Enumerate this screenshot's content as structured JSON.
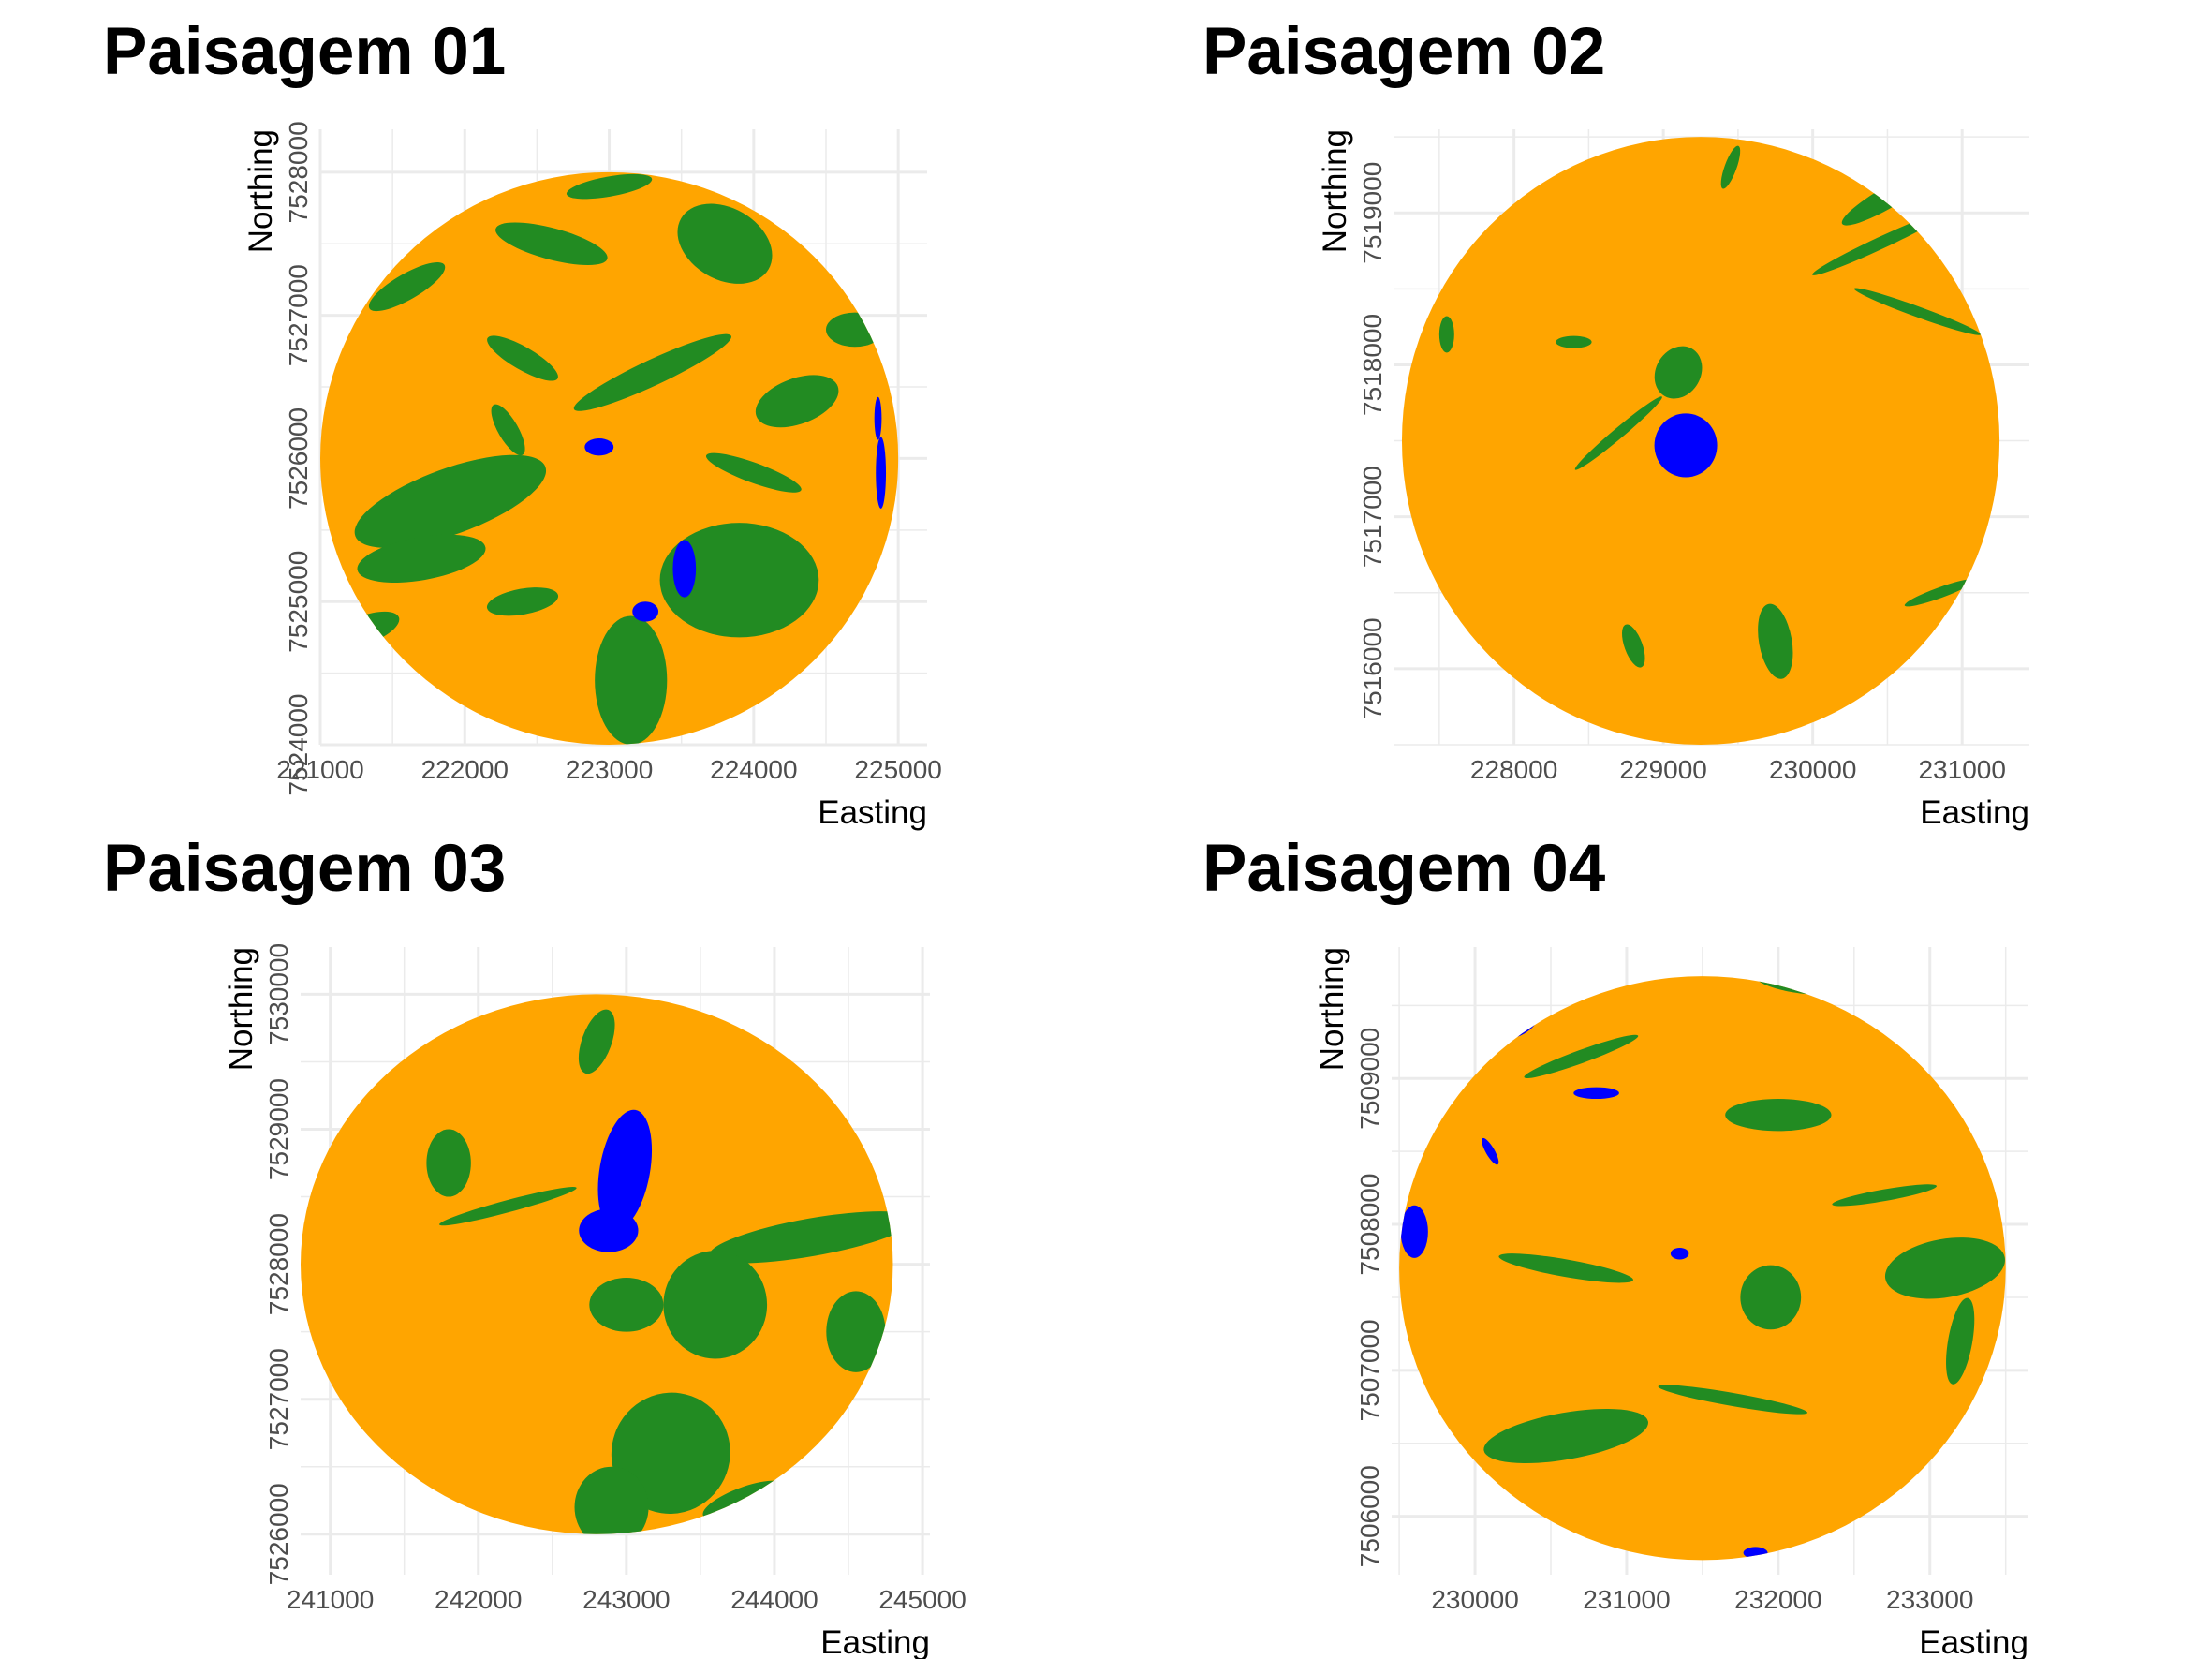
{
  "colors": {
    "habitat": "#228B22",
    "matrix": "#FFA500",
    "water": "#0000FF",
    "grid": "#EBEBEB"
  },
  "chart_data": [
    {
      "type": "heatmap",
      "title": "Paisagem 01",
      "xlabel": "Easting",
      "ylabel": "Northing",
      "x_ticks": [
        "221000",
        "222000",
        "223000",
        "224000",
        "225000"
      ],
      "y_ticks": [
        "7524000",
        "7525000",
        "7526000",
        "7527000",
        "7528000"
      ],
      "xlim": [
        221000,
        225200
      ],
      "ylim": [
        7524000,
        7528300
      ],
      "center": [
        223000,
        7526000
      ],
      "radius": 2000,
      "water_bodies": [
        {
          "x": 222930,
          "y": 7526080,
          "rx": 100,
          "ry": 60
        },
        {
          "x": 223520,
          "y": 7525230,
          "rx": 80,
          "ry": 200
        },
        {
          "x": 223250,
          "y": 7524930,
          "rx": 90,
          "ry": 70
        },
        {
          "x": 224880,
          "y": 7525900,
          "rx": 35,
          "ry": 250
        },
        {
          "x": 224860,
          "y": 7526280,
          "rx": 25,
          "ry": 150
        }
      ],
      "habitat_patches": [
        {
          "x": 221900,
          "y": 7525700,
          "rx": 700,
          "ry": 230,
          "rot": -20
        },
        {
          "x": 221700,
          "y": 7525300,
          "rx": 450,
          "ry": 150,
          "rot": -10
        },
        {
          "x": 223900,
          "y": 7525150,
          "rx": 550,
          "ry": 400,
          "rot": 0
        },
        {
          "x": 223150,
          "y": 7524450,
          "rx": 250,
          "ry": 450,
          "rot": 0
        },
        {
          "x": 223800,
          "y": 7527500,
          "rx": 350,
          "ry": 250,
          "rot": 30
        },
        {
          "x": 224300,
          "y": 7526400,
          "rx": 300,
          "ry": 160,
          "rot": -20
        },
        {
          "x": 222600,
          "y": 7527500,
          "rx": 400,
          "ry": 110,
          "rot": 15
        },
        {
          "x": 223300,
          "y": 7526600,
          "rx": 600,
          "ry": 90,
          "rot": -25
        },
        {
          "x": 224700,
          "y": 7526900,
          "rx": 200,
          "ry": 120,
          "rot": 0
        },
        {
          "x": 221600,
          "y": 7527200,
          "rx": 300,
          "ry": 90,
          "rot": -30
        },
        {
          "x": 222400,
          "y": 7526700,
          "rx": 280,
          "ry": 80,
          "rot": 30
        },
        {
          "x": 224000,
          "y": 7525900,
          "rx": 350,
          "ry": 70,
          "rot": 20
        },
        {
          "x": 221300,
          "y": 7524800,
          "rx": 260,
          "ry": 100,
          "rot": -20
        },
        {
          "x": 222400,
          "y": 7525000,
          "rx": 250,
          "ry": 90,
          "rot": -10
        },
        {
          "x": 223000,
          "y": 7527900,
          "rx": 300,
          "ry": 70,
          "rot": -10
        },
        {
          "x": 222300,
          "y": 7526200,
          "rx": 200,
          "ry": 70,
          "rot": 60
        }
      ]
    },
    {
      "type": "heatmap",
      "title": "Paisagem 02",
      "xlabel": "Easting",
      "ylabel": "Northing",
      "x_ticks": [
        "228000",
        "229000",
        "230000",
        "231000"
      ],
      "y_ticks": [
        "7516000",
        "7517000",
        "7518000",
        "7519000"
      ],
      "xlim": [
        227200,
        231450
      ],
      "ylim": [
        7515500,
        7519550
      ],
      "center": [
        229250,
        7517500
      ],
      "radius": 2000,
      "water_bodies": [
        {
          "x": 229150,
          "y": 7517470,
          "rx": 210,
          "ry": 210
        }
      ],
      "habitat_patches": [
        {
          "x": 229100,
          "y": 7517950,
          "rx": 150,
          "ry": 180,
          "rot": 30
        },
        {
          "x": 228700,
          "y": 7517550,
          "rx": 380,
          "ry": 35,
          "rot": -40
        },
        {
          "x": 230450,
          "y": 7518800,
          "rx": 500,
          "ry": 40,
          "rot": -25
        },
        {
          "x": 230500,
          "y": 7519100,
          "rx": 350,
          "ry": 70,
          "rot": -30
        },
        {
          "x": 230700,
          "y": 7518350,
          "rx": 450,
          "ry": 35,
          "rot": 20
        },
        {
          "x": 229750,
          "y": 7516180,
          "rx": 110,
          "ry": 250,
          "rot": -10
        },
        {
          "x": 228800,
          "y": 7516150,
          "rx": 60,
          "ry": 150,
          "rot": -20
        },
        {
          "x": 230850,
          "y": 7516500,
          "rx": 250,
          "ry": 35,
          "rot": -20
        },
        {
          "x": 228400,
          "y": 7518150,
          "rx": 120,
          "ry": 40,
          "rot": 0
        },
        {
          "x": 227550,
          "y": 7518200,
          "rx": 50,
          "ry": 120,
          "rot": 0
        },
        {
          "x": 229450,
          "y": 7519300,
          "rx": 40,
          "ry": 150,
          "rot": 20
        }
      ]
    },
    {
      "type": "heatmap",
      "title": "Paisagem 03",
      "xlabel": "Easting",
      "ylabel": "Northing",
      "x_ticks": [
        "241000",
        "242000",
        "243000",
        "244000",
        "245000"
      ],
      "y_ticks": [
        "7526000",
        "7527000",
        "7528000",
        "7529000",
        "7530000"
      ],
      "xlim": [
        240800,
        245050
      ],
      "ylim": [
        7525700,
        7530350
      ],
      "center": [
        242800,
        7528000
      ],
      "radius": 2000,
      "water_bodies": [
        {
          "x": 242990,
          "y": 7528700,
          "rx": 170,
          "ry": 450,
          "rot": 10
        },
        {
          "x": 242880,
          "y": 7528250,
          "rx": 200,
          "ry": 160,
          "rot": 0
        }
      ],
      "habitat_patches": [
        {
          "x": 242200,
          "y": 7528430,
          "rx": 480,
          "ry": 45,
          "rot": -15
        },
        {
          "x": 241800,
          "y": 7528750,
          "rx": 150,
          "ry": 250,
          "rot": 0
        },
        {
          "x": 244250,
          "y": 7528200,
          "rx": 700,
          "ry": 140,
          "rot": -10
        },
        {
          "x": 243600,
          "y": 7527700,
          "rx": 350,
          "ry": 400,
          "rot": 0
        },
        {
          "x": 244550,
          "y": 7527500,
          "rx": 200,
          "ry": 300,
          "rot": 0
        },
        {
          "x": 243300,
          "y": 7526600,
          "rx": 400,
          "ry": 450,
          "rot": 20
        },
        {
          "x": 242900,
          "y": 7526200,
          "rx": 250,
          "ry": 300,
          "rot": 0
        },
        {
          "x": 243000,
          "y": 7527700,
          "rx": 250,
          "ry": 200,
          "rot": 0
        },
        {
          "x": 242800,
          "y": 7529650,
          "rx": 100,
          "ry": 250,
          "rot": 20
        },
        {
          "x": 242200,
          "y": 7525950,
          "rx": 250,
          "ry": 120,
          "rot": 0
        },
        {
          "x": 243800,
          "y": 7526250,
          "rx": 300,
          "ry": 100,
          "rot": -20
        }
      ]
    },
    {
      "type": "heatmap",
      "title": "Paisagem 04",
      "xlabel": "Easting",
      "ylabel": "Northing",
      "x_ticks": [
        "230000",
        "231000",
        "232000",
        "233000"
      ],
      "y_ticks": [
        "7506000",
        "7507000",
        "7508000",
        "7509000"
      ],
      "xlim": [
        229450,
        233650
      ],
      "ylim": [
        7505600,
        7509900
      ],
      "center": [
        231500,
        7507700
      ],
      "radius": 2000,
      "water_bodies": [
        {
          "x": 229600,
          "y": 7507950,
          "rx": 90,
          "ry": 180,
          "rot": 0
        },
        {
          "x": 230300,
          "y": 7509350,
          "rx": 120,
          "ry": 50,
          "rot": -30
        },
        {
          "x": 230800,
          "y": 7508900,
          "rx": 150,
          "ry": 40,
          "rot": 0
        },
        {
          "x": 230100,
          "y": 7508500,
          "rx": 100,
          "ry": 30,
          "rot": 60
        },
        {
          "x": 231350,
          "y": 7507800,
          "rx": 60,
          "ry": 40,
          "rot": 0
        },
        {
          "x": 231850,
          "y": 7505750,
          "rx": 80,
          "ry": 40,
          "rot": 0
        }
      ],
      "habitat_patches": [
        {
          "x": 230600,
          "y": 7506550,
          "rx": 550,
          "ry": 160,
          "rot": -10
        },
        {
          "x": 232000,
          "y": 7508750,
          "rx": 350,
          "ry": 110,
          "rot": 0
        },
        {
          "x": 233100,
          "y": 7507700,
          "rx": 400,
          "ry": 200,
          "rot": -10
        },
        {
          "x": 231950,
          "y": 7507500,
          "rx": 200,
          "ry": 220,
          "rot": 0
        },
        {
          "x": 230600,
          "y": 7507700,
          "rx": 450,
          "ry": 60,
          "rot": 10
        },
        {
          "x": 231700,
          "y": 7506800,
          "rx": 500,
          "ry": 45,
          "rot": 10
        },
        {
          "x": 230700,
          "y": 7509150,
          "rx": 400,
          "ry": 45,
          "rot": -20
        },
        {
          "x": 232100,
          "y": 7509650,
          "rx": 250,
          "ry": 60,
          "rot": 10
        },
        {
          "x": 232700,
          "y": 7508200,
          "rx": 350,
          "ry": 40,
          "rot": -10
        },
        {
          "x": 233200,
          "y": 7507200,
          "rx": 80,
          "ry": 300,
          "rot": 10
        }
      ]
    }
  ]
}
